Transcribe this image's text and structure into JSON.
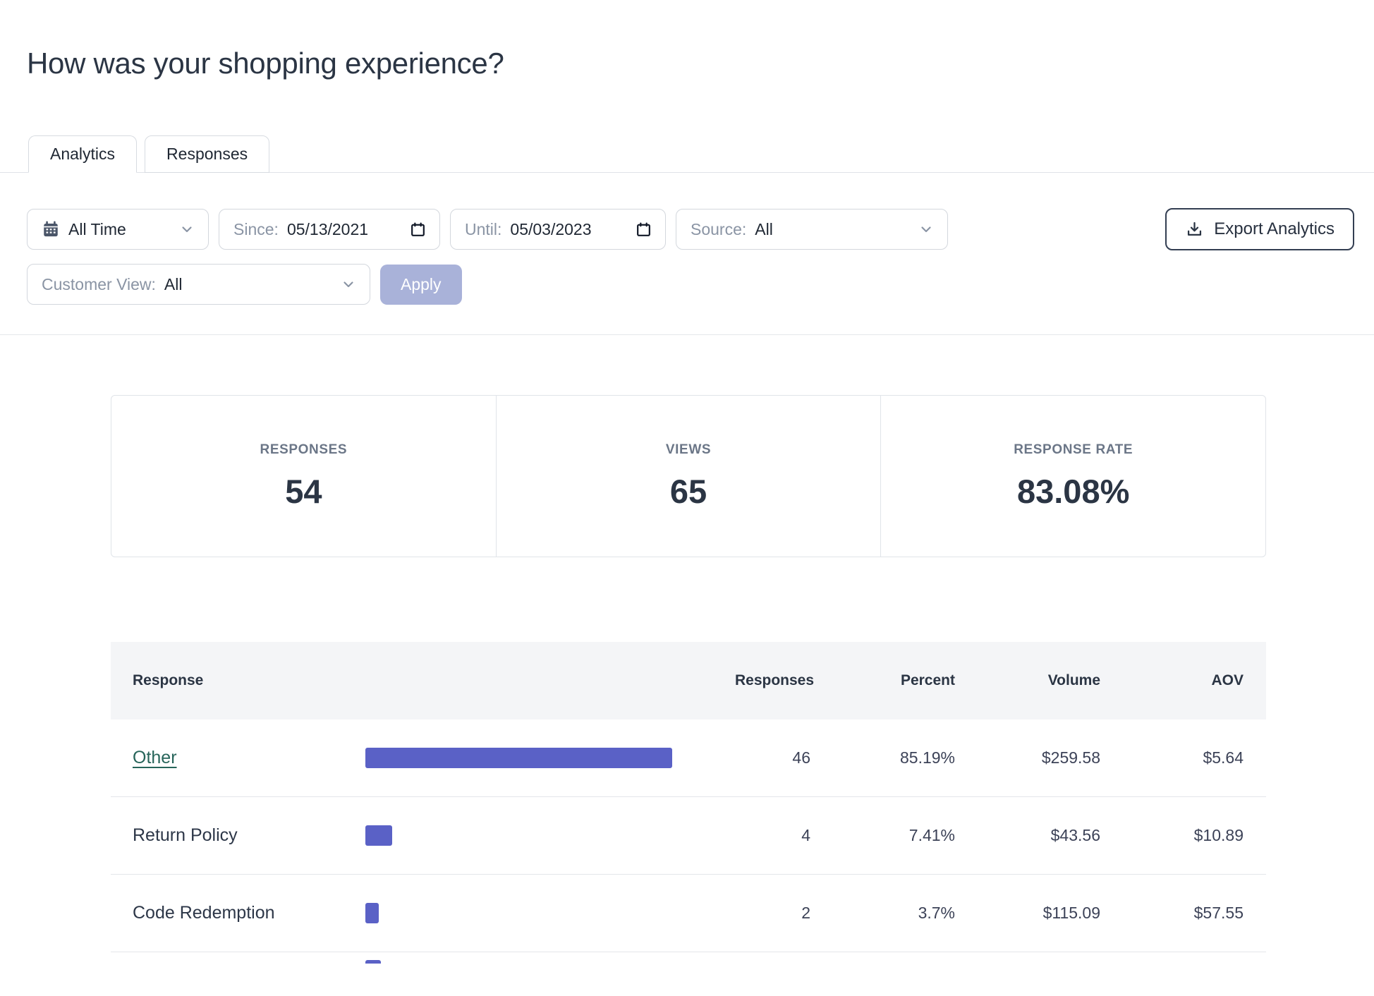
{
  "page": {
    "title": "How was your shopping experience?"
  },
  "tabs": {
    "analytics": "Analytics",
    "responses": "Responses",
    "active_tab": "Analytics"
  },
  "filters": {
    "time_range_value": "All Time",
    "since_label": "Since:",
    "since_value": "05/13/2021",
    "until_label": "Until:",
    "until_value": "05/03/2023",
    "source_label": "Source:",
    "source_value": "All",
    "customer_view_label": "Customer View:",
    "customer_view_value": "All",
    "apply_label": "Apply",
    "export_label": "Export Analytics"
  },
  "stats": {
    "responses": {
      "label": "RESPONSES",
      "value": "54"
    },
    "views": {
      "label": "VIEWS",
      "value": "65"
    },
    "response_rate": {
      "label": "RESPONSE RATE",
      "value": "83.08%"
    }
  },
  "table": {
    "columns": {
      "response": "Response",
      "responses": "Responses",
      "percent": "Percent",
      "volume": "Volume",
      "aov": "AOV"
    },
    "rows": [
      {
        "label": "Other",
        "link": true,
        "responses": "46",
        "percent": "85.19%",
        "percent_value": 85.19,
        "volume": "$259.58",
        "aov": "$5.64"
      },
      {
        "label": "Return Policy",
        "link": false,
        "responses": "4",
        "percent": "7.41%",
        "percent_value": 7.41,
        "volume": "$43.56",
        "aov": "$10.89"
      },
      {
        "label": "Code Redemption",
        "link": false,
        "responses": "2",
        "percent": "3.7%",
        "percent_value": 3.7,
        "volume": "$115.09",
        "aov": "$57.55"
      }
    ],
    "next_row_partially_visible": true
  },
  "colors": {
    "bar": "#5a61c6",
    "link": "#27655a",
    "apply_button_bg": "#a9b2d9",
    "table_header_bg": "#f4f5f7",
    "dark_text": "#2b3544"
  }
}
